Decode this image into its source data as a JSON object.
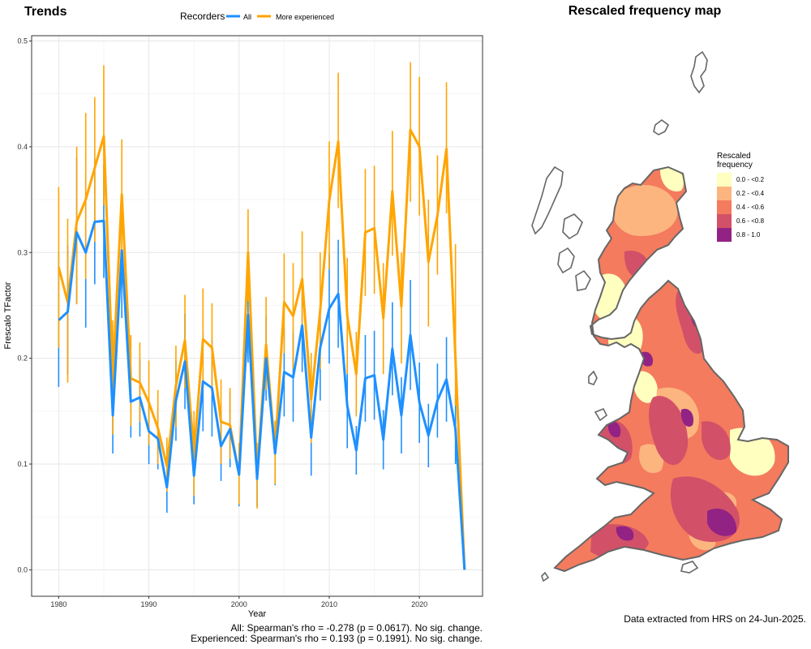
{
  "chart_data": {
    "type": "line",
    "title": "Trends",
    "xlabel": "Year",
    "ylabel": "Frescalo TFactor",
    "xlim": [
      1977,
      2027
    ],
    "ylim": [
      -0.025,
      0.505
    ],
    "x_ticks": [
      1980,
      1990,
      2000,
      2010,
      2020
    ],
    "y_ticks": [
      0.0,
      0.1,
      0.2,
      0.3,
      0.4,
      0.5
    ],
    "y_tick_labels": [
      "0.0",
      "0.1",
      "0.2",
      "0.3",
      "0.4",
      "0.5"
    ],
    "legend": {
      "title": "Recorders",
      "placement": "top-center"
    },
    "x": [
      1980,
      1981,
      1982,
      1983,
      1984,
      1985,
      1986,
      1987,
      1988,
      1989,
      1990,
      1991,
      1992,
      1993,
      1994,
      1995,
      1996,
      1997,
      1998,
      1999,
      2000,
      2001,
      2002,
      2003,
      2004,
      2005,
      2006,
      2007,
      2008,
      2009,
      2010,
      2011,
      2012,
      2013,
      2014,
      2015,
      2016,
      2017,
      2018,
      2019,
      2020,
      2021,
      2022,
      2023,
      2024,
      2025
    ],
    "series": [
      {
        "name": "All",
        "color": "#1E90FF",
        "values": [
          0.236,
          0.244,
          0.319,
          0.3,
          0.329,
          0.33,
          0.146,
          0.302,
          0.159,
          0.163,
          0.131,
          0.124,
          0.078,
          0.16,
          0.197,
          0.089,
          0.178,
          0.172,
          0.117,
          0.133,
          0.09,
          0.241,
          0.086,
          0.2,
          0.11,
          0.187,
          0.182,
          0.231,
          0.125,
          0.21,
          0.247,
          0.261,
          0.155,
          0.113,
          0.181,
          0.184,
          0.123,
          0.209,
          0.146,
          0.222,
          0.158,
          0.127,
          0.16,
          0.18,
          0.133,
          0.0
        ],
        "err_low": [
          0.173,
          0.185,
          0.252,
          0.229,
          0.27,
          0.276,
          0.11,
          0.238,
          0.125,
          0.126,
          0.1,
          0.095,
          0.054,
          0.122,
          0.152,
          0.062,
          0.131,
          0.126,
          0.084,
          0.097,
          0.06,
          0.196,
          0.06,
          0.16,
          0.08,
          0.145,
          0.14,
          0.187,
          0.089,
          0.16,
          0.195,
          0.21,
          0.115,
          0.09,
          0.14,
          0.142,
          0.095,
          0.165,
          0.11,
          0.17,
          0.12,
          0.097,
          0.125,
          0.14,
          0.1,
          0.0
        ],
        "err_high": [
          0.3,
          0.307,
          0.39,
          0.371,
          0.389,
          0.383,
          0.182,
          0.341,
          0.193,
          0.199,
          0.162,
          0.153,
          0.102,
          0.198,
          0.242,
          0.116,
          0.225,
          0.218,
          0.15,
          0.169,
          0.12,
          0.285,
          0.112,
          0.24,
          0.14,
          0.229,
          0.224,
          0.275,
          0.161,
          0.26,
          0.299,
          0.312,
          0.195,
          0.136,
          0.222,
          0.226,
          0.151,
          0.253,
          0.182,
          0.274,
          0.196,
          0.157,
          0.195,
          0.22,
          0.166,
          0.0
        ]
      },
      {
        "name": "More experienced",
        "color": "#FFA500",
        "values": [
          0.286,
          0.253,
          0.329,
          0.35,
          0.38,
          0.41,
          0.181,
          0.355,
          0.181,
          0.177,
          0.158,
          0.134,
          0.098,
          0.174,
          0.217,
          0.11,
          0.218,
          0.21,
          0.14,
          0.137,
          0.09,
          0.3,
          0.09,
          0.213,
          0.111,
          0.253,
          0.24,
          0.275,
          0.161,
          0.245,
          0.349,
          0.405,
          0.24,
          0.185,
          0.319,
          0.323,
          0.238,
          0.358,
          0.249,
          0.416,
          0.4,
          0.291,
          0.335,
          0.398,
          0.2,
          0.0
        ],
        "err_low": [
          0.21,
          0.177,
          0.251,
          0.275,
          0.31,
          0.345,
          0.128,
          0.296,
          0.136,
          0.14,
          0.118,
          0.1,
          0.074,
          0.135,
          0.172,
          0.07,
          0.17,
          0.165,
          0.1,
          0.105,
          0.062,
          0.254,
          0.058,
          0.17,
          0.081,
          0.205,
          0.19,
          0.23,
          0.12,
          0.19,
          0.284,
          0.342,
          0.185,
          0.145,
          0.259,
          0.261,
          0.185,
          0.297,
          0.195,
          0.348,
          0.335,
          0.23,
          0.279,
          0.337,
          0.155,
          0.0
        ],
        "err_high": [
          0.362,
          0.332,
          0.4,
          0.432,
          0.447,
          0.477,
          0.236,
          0.407,
          0.222,
          0.215,
          0.198,
          0.17,
          0.125,
          0.212,
          0.26,
          0.15,
          0.266,
          0.252,
          0.18,
          0.172,
          0.12,
          0.341,
          0.12,
          0.258,
          0.141,
          0.299,
          0.29,
          0.32,
          0.205,
          0.3,
          0.405,
          0.47,
          0.295,
          0.225,
          0.379,
          0.382,
          0.29,
          0.415,
          0.3,
          0.48,
          0.466,
          0.35,
          0.392,
          0.461,
          0.308,
          0.0
        ]
      }
    ]
  },
  "stats": {
    "line1": "All: Spearman's rho = -0.278 (p = 0.0617). No sig. change.",
    "line2": "Experienced: Spearman's rho = 0.193 (p = 0.1991). No sig. change."
  },
  "map": {
    "title": "Rescaled frequency map",
    "legend_title_line1": "Rescaled",
    "legend_title_line2": "frequency",
    "classes": [
      {
        "label": "0.0 - <0.2",
        "color": "#FFFFBF"
      },
      {
        "label": "0.2 - <0.4",
        "color": "#FDB57F"
      },
      {
        "label": "0.4 - <0.6",
        "color": "#F47B5E"
      },
      {
        "label": "0.6 - <0.8",
        "color": "#D25168"
      },
      {
        "label": "0.8 - 1.0",
        "color": "#922384"
      }
    ],
    "outline_color": "#666666"
  },
  "footnote": "Data extracted from HRS on 24-Jun-2025."
}
